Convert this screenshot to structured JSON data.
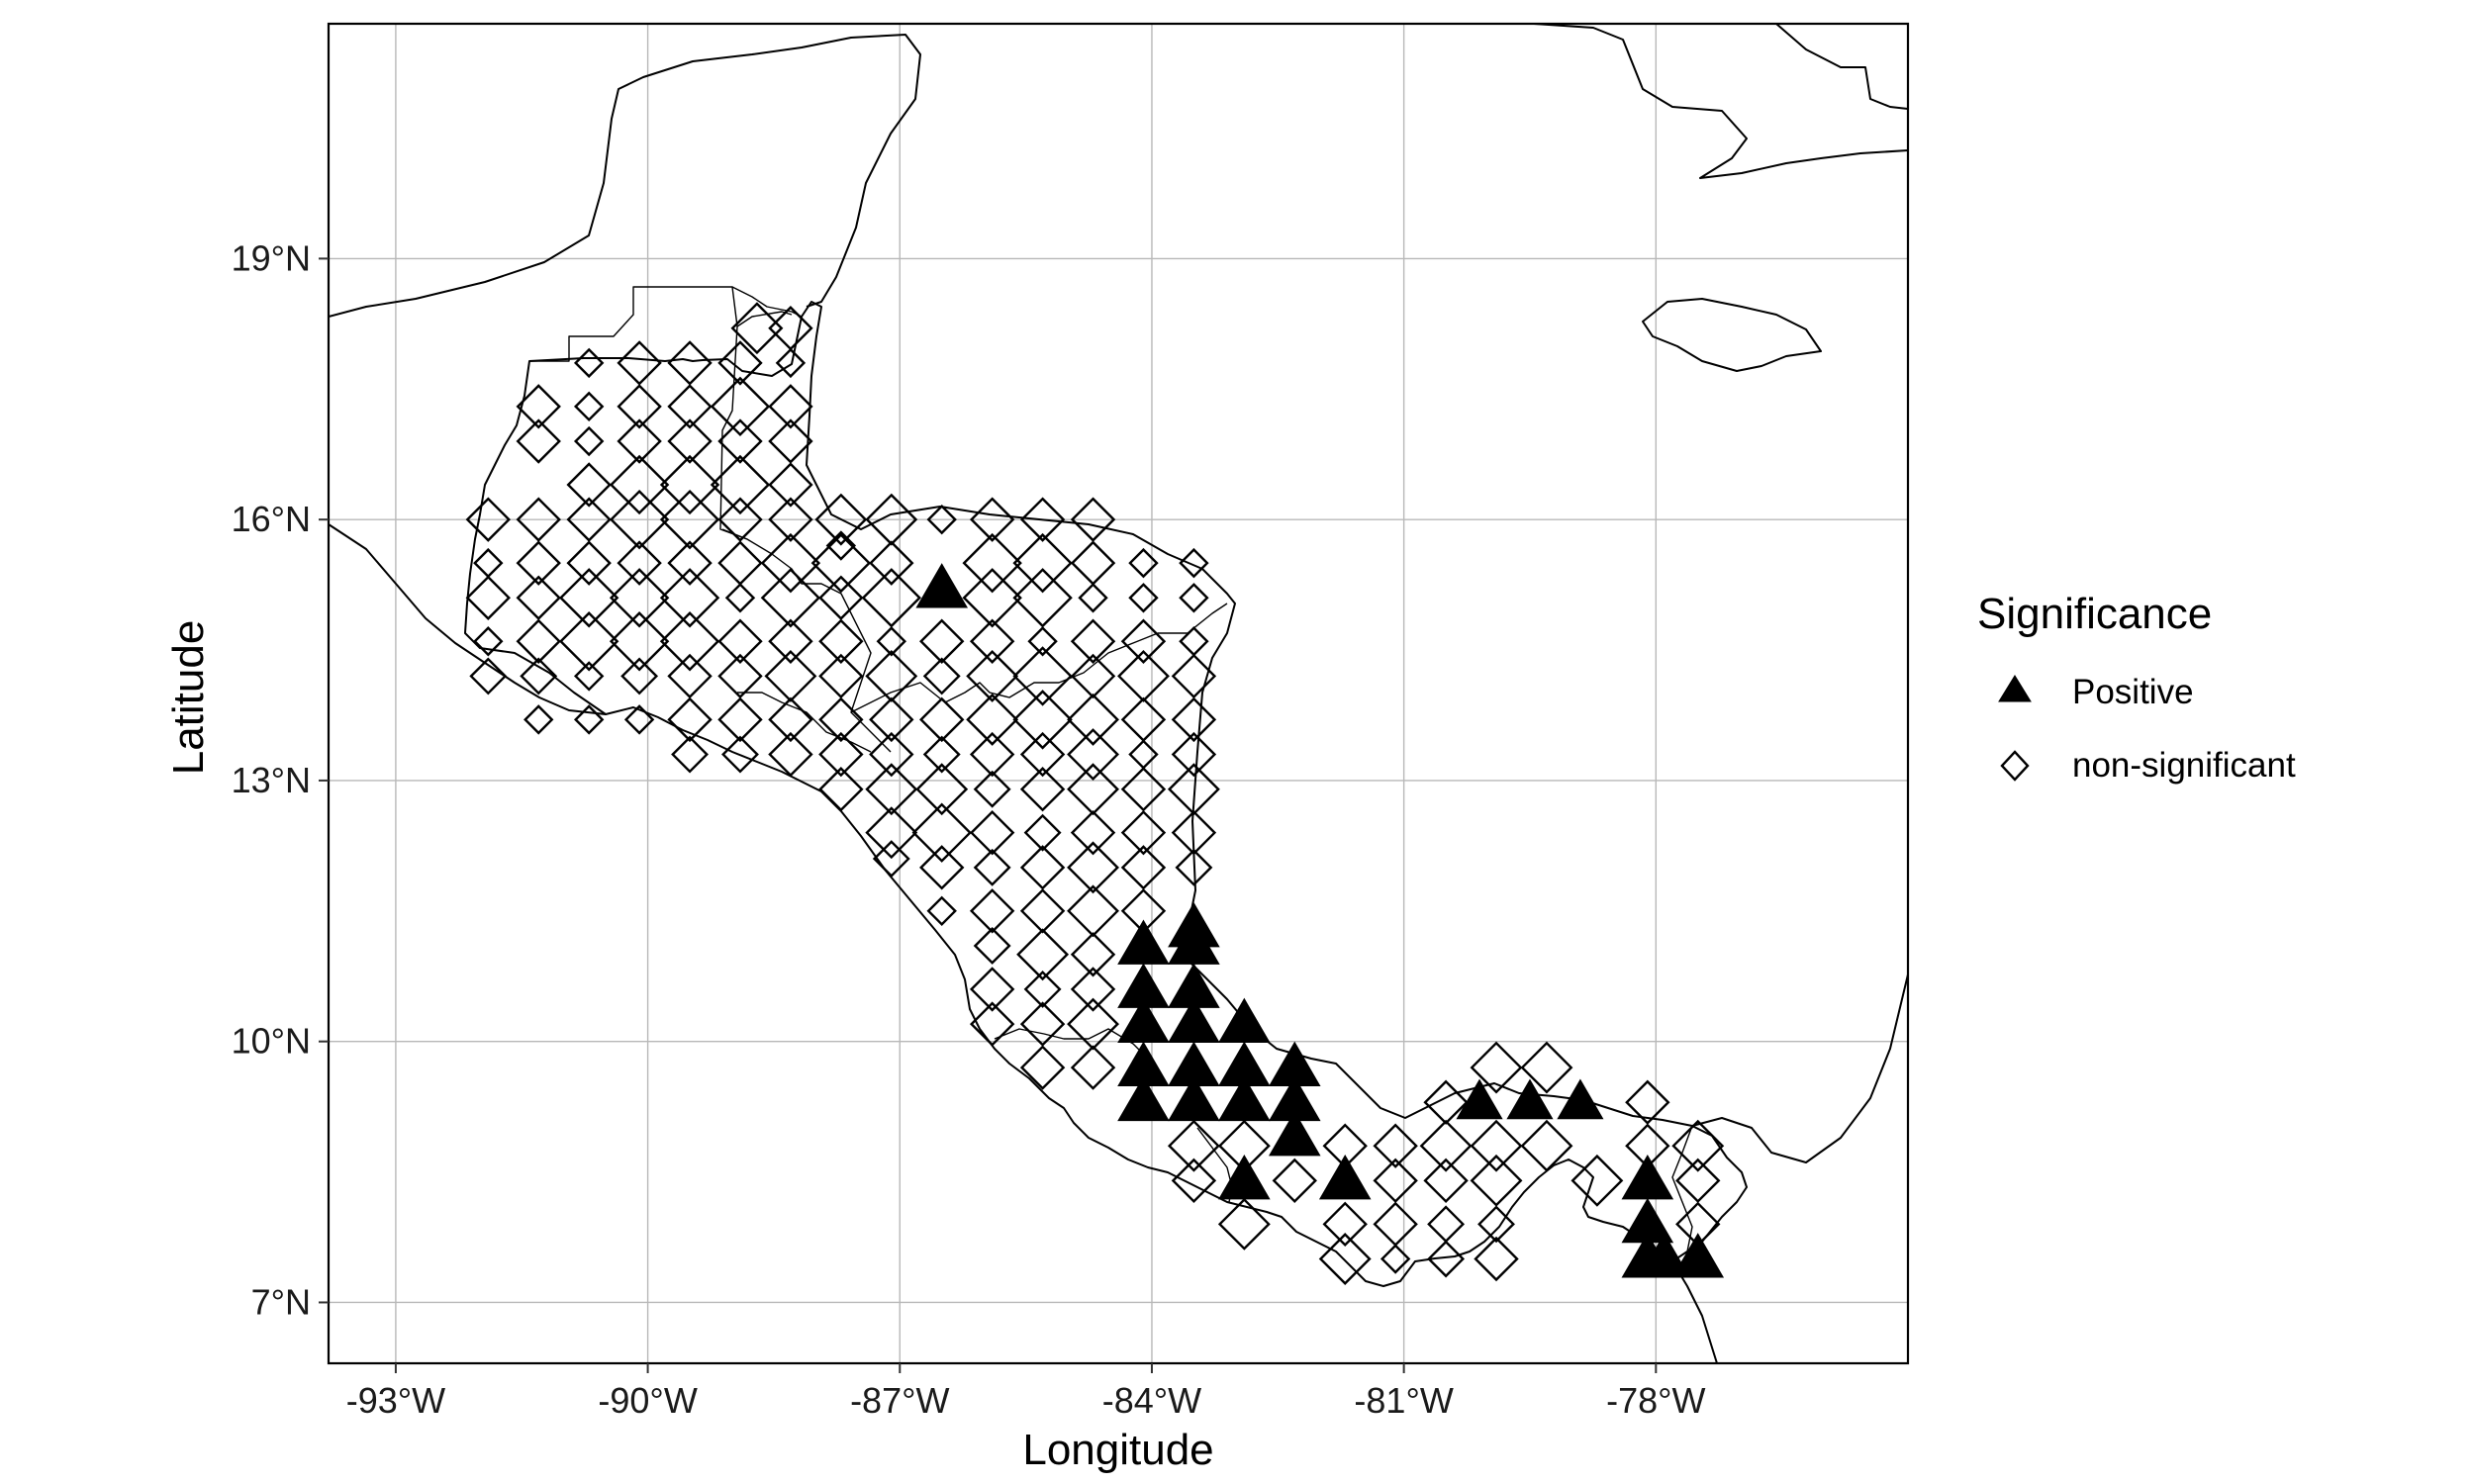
{
  "chart_data": {
    "type": "scatter",
    "xlabel": "Longitude",
    "ylabel": "Latitude",
    "xlim": [
      -93.8,
      -75.0
    ],
    "ylim": [
      6.3,
      21.7
    ],
    "x_ticks": [
      {
        "value": -93,
        "label": "-93°W"
      },
      {
        "value": -90,
        "label": "-90°W"
      },
      {
        "value": -87,
        "label": "-87°W"
      },
      {
        "value": -84,
        "label": "-84°W"
      },
      {
        "value": -81,
        "label": "-81°W"
      },
      {
        "value": -78,
        "label": "-78°W"
      }
    ],
    "y_ticks": [
      {
        "value": 7,
        "label": "7°N"
      },
      {
        "value": 10,
        "label": "10°N"
      },
      {
        "value": 13,
        "label": "13°N"
      },
      {
        "value": 16,
        "label": "16°N"
      },
      {
        "value": 19,
        "label": "19°N"
      }
    ],
    "grid": true,
    "legend": {
      "title": "Significance",
      "position": "right",
      "entries": [
        {
          "label": "Positive",
          "shape": "triangle-filled"
        },
        {
          "label": "non-significant",
          "shape": "diamond-open"
        }
      ]
    },
    "series": [
      {
        "name": "Positive",
        "shape": "triangle-filled",
        "points": [
          [
            -86.5,
            15.2,
            3
          ],
          [
            -84.1,
            11.1,
            3
          ],
          [
            -83.5,
            11.1,
            3
          ],
          [
            -83.5,
            11.3,
            3
          ],
          [
            -84.1,
            10.6,
            3
          ],
          [
            -83.5,
            10.6,
            3
          ],
          [
            -84.1,
            10.2,
            3
          ],
          [
            -83.5,
            10.2,
            3
          ],
          [
            -82.9,
            10.2,
            3
          ],
          [
            -84.1,
            9.7,
            3
          ],
          [
            -83.5,
            9.7,
            3
          ],
          [
            -82.9,
            9.7,
            3
          ],
          [
            -82.3,
            9.7,
            3
          ],
          [
            -84.1,
            9.3,
            3
          ],
          [
            -83.5,
            9.3,
            3
          ],
          [
            -82.9,
            9.3,
            3
          ],
          [
            -82.3,
            9.3,
            3
          ],
          [
            -82.3,
            8.9,
            3
          ],
          [
            -82.9,
            8.4,
            3
          ],
          [
            -81.7,
            8.4,
            3
          ],
          [
            -80.1,
            9.3,
            2.6
          ],
          [
            -79.5,
            9.3,
            2.6
          ],
          [
            -78.9,
            9.3,
            2.6
          ],
          [
            -78.1,
            8.4,
            3
          ],
          [
            -78.1,
            7.9,
            3
          ],
          [
            -78.1,
            7.5,
            3
          ],
          [
            -77.9,
            7.5,
            3
          ],
          [
            -77.5,
            7.5,
            3
          ]
        ]
      },
      {
        "name": "non-significant",
        "shape": "diamond-open",
        "points": [
          [
            -88.7,
            18.2,
            2.5
          ],
          [
            -88.3,
            18.2,
            2
          ],
          [
            -91.3,
            17.3,
            2
          ],
          [
            -90.7,
            17.8,
            1
          ],
          [
            -90.1,
            17.8,
            2
          ],
          [
            -89.5,
            17.8,
            2
          ],
          [
            -88.9,
            17.8,
            2
          ],
          [
            -88.3,
            17.8,
            1
          ],
          [
            -91.3,
            16.9,
            2
          ],
          [
            -90.7,
            17.3,
            1
          ],
          [
            -90.1,
            17.3,
            2
          ],
          [
            -89.5,
            17.3,
            2
          ],
          [
            -88.9,
            17.3,
            3
          ],
          [
            -88.3,
            17.3,
            2
          ],
          [
            -90.7,
            16.9,
            1
          ],
          [
            -90.1,
            16.9,
            2
          ],
          [
            -89.5,
            16.9,
            2
          ],
          [
            -88.9,
            16.9,
            2
          ],
          [
            -88.3,
            16.9,
            2
          ],
          [
            -90.7,
            16.4,
            2
          ],
          [
            -90.1,
            16.4,
            3
          ],
          [
            -89.5,
            16.4,
            3
          ],
          [
            -88.9,
            16.4,
            3
          ],
          [
            -88.3,
            16.4,
            2
          ],
          [
            -91.9,
            16.0,
            2
          ],
          [
            -91.3,
            16.0,
            2
          ],
          [
            -90.7,
            16.0,
            2
          ],
          [
            -90.1,
            16.0,
            3
          ],
          [
            -89.5,
            16.0,
            3
          ],
          [
            -88.9,
            16.0,
            2
          ],
          [
            -88.3,
            16.0,
            2
          ],
          [
            -87.7,
            16.0,
            2.5
          ],
          [
            -87.1,
            16.0,
            2.5
          ],
          [
            -86.5,
            16.0,
            1
          ],
          [
            -85.9,
            16.0,
            2
          ],
          [
            -85.3,
            16.0,
            2
          ],
          [
            -84.7,
            16.0,
            2
          ],
          [
            -91.9,
            15.5,
            1
          ],
          [
            -91.3,
            15.5,
            2
          ],
          [
            -90.7,
            15.5,
            2
          ],
          [
            -90.1,
            15.5,
            2
          ],
          [
            -89.5,
            15.5,
            2
          ],
          [
            -88.9,
            15.5,
            2
          ],
          [
            -88.3,
            15.5,
            3
          ],
          [
            -87.7,
            15.7,
            1
          ],
          [
            -87.7,
            15.5,
            3
          ],
          [
            -87.1,
            15.5,
            2
          ],
          [
            -85.9,
            15.5,
            3
          ],
          [
            -85.3,
            15.5,
            3
          ],
          [
            -84.7,
            15.5,
            2
          ],
          [
            -84.1,
            15.5,
            1
          ],
          [
            -83.5,
            15.5,
            1
          ],
          [
            -91.9,
            15.1,
            2
          ],
          [
            -91.3,
            15.1,
            2
          ],
          [
            -90.7,
            15.1,
            3
          ],
          [
            -90.1,
            15.1,
            3
          ],
          [
            -89.5,
            15.1,
            3
          ],
          [
            -88.9,
            15.1,
            1
          ],
          [
            -88.3,
            15.1,
            3
          ],
          [
            -87.7,
            15.1,
            2
          ],
          [
            -87.1,
            15.1,
            3
          ],
          [
            -85.9,
            15.1,
            3
          ],
          [
            -85.3,
            15.1,
            3
          ],
          [
            -84.7,
            15.1,
            1
          ],
          [
            -84.1,
            15.1,
            1
          ],
          [
            -83.5,
            15.1,
            1
          ],
          [
            -91.9,
            14.6,
            1
          ],
          [
            -91.3,
            14.6,
            2
          ],
          [
            -90.7,
            14.6,
            3
          ],
          [
            -90.1,
            14.6,
            3
          ],
          [
            -89.5,
            14.6,
            3
          ],
          [
            -88.9,
            14.6,
            2
          ],
          [
            -88.3,
            14.6,
            2
          ],
          [
            -87.7,
            14.6,
            2
          ],
          [
            -87.1,
            14.6,
            1
          ],
          [
            -86.5,
            14.6,
            2
          ],
          [
            -85.9,
            14.6,
            2
          ],
          [
            -85.3,
            14.6,
            1
          ],
          [
            -84.7,
            14.6,
            2
          ],
          [
            -84.1,
            14.6,
            2
          ],
          [
            -83.5,
            14.6,
            1
          ],
          [
            -91.9,
            14.2,
            1.5
          ],
          [
            -91.3,
            14.2,
            1.5
          ],
          [
            -90.7,
            14.2,
            1
          ],
          [
            -90.1,
            14.2,
            1.5
          ],
          [
            -89.5,
            14.2,
            2
          ],
          [
            -88.9,
            14.2,
            2
          ],
          [
            -88.3,
            14.2,
            2.5
          ],
          [
            -87.7,
            14.2,
            2
          ],
          [
            -87.1,
            14.2,
            2.5
          ],
          [
            -86.5,
            14.2,
            1.5
          ],
          [
            -85.9,
            14.2,
            2.5
          ],
          [
            -85.3,
            14.2,
            3
          ],
          [
            -84.7,
            14.2,
            2
          ],
          [
            -84.1,
            14.2,
            2.5
          ],
          [
            -83.5,
            14.2,
            2
          ],
          [
            -91.3,
            13.7,
            1
          ],
          [
            -90.7,
            13.7,
            1
          ],
          [
            -90.1,
            13.7,
            1
          ],
          [
            -89.5,
            13.7,
            2
          ],
          [
            -88.9,
            13.7,
            2
          ],
          [
            -88.3,
            13.7,
            2
          ],
          [
            -87.7,
            13.7,
            2
          ],
          [
            -87.1,
            13.7,
            2
          ],
          [
            -86.5,
            13.7,
            2
          ],
          [
            -85.9,
            13.7,
            2.5
          ],
          [
            -85.3,
            13.7,
            3
          ],
          [
            -84.7,
            13.7,
            2.5
          ],
          [
            -84.1,
            13.7,
            2
          ],
          [
            -83.5,
            13.7,
            2
          ],
          [
            -89.5,
            13.3,
            1.5
          ],
          [
            -88.9,
            13.3,
            1.5
          ],
          [
            -88.3,
            13.3,
            2
          ],
          [
            -87.7,
            13.3,
            2
          ],
          [
            -87.1,
            13.3,
            2
          ],
          [
            -86.5,
            13.3,
            1.5
          ],
          [
            -85.9,
            13.3,
            2
          ],
          [
            -85.3,
            13.3,
            2
          ],
          [
            -84.7,
            13.3,
            2.5
          ],
          [
            -84.1,
            13.3,
            1
          ],
          [
            -83.5,
            13.3,
            2
          ],
          [
            -87.7,
            12.9,
            2
          ],
          [
            -87.1,
            12.9,
            2.5
          ],
          [
            -86.5,
            12.9,
            2.5
          ],
          [
            -85.9,
            12.9,
            1.5
          ],
          [
            -85.3,
            12.9,
            2
          ],
          [
            -84.7,
            12.9,
            2.5
          ],
          [
            -84.1,
            12.9,
            2
          ],
          [
            -83.5,
            12.9,
            2.5
          ],
          [
            -87.1,
            12.4,
            2.5
          ],
          [
            -86.5,
            12.4,
            3
          ],
          [
            -85.9,
            12.4,
            2
          ],
          [
            -85.3,
            12.4,
            1.5
          ],
          [
            -84.7,
            12.4,
            2
          ],
          [
            -84.1,
            12.4,
            2
          ],
          [
            -83.5,
            12.4,
            2
          ],
          [
            -87.1,
            12.1,
            1.5
          ],
          [
            -86.5,
            12.0,
            2
          ],
          [
            -85.9,
            12.0,
            1.5
          ],
          [
            -85.3,
            12.0,
            2
          ],
          [
            -84.7,
            12.0,
            2.5
          ],
          [
            -84.1,
            12.0,
            2
          ],
          [
            -83.5,
            12.0,
            1.5
          ],
          [
            -86.5,
            11.5,
            1
          ],
          [
            -85.9,
            11.5,
            2
          ],
          [
            -85.3,
            11.5,
            2
          ],
          [
            -84.7,
            11.5,
            2.5
          ],
          [
            -84.1,
            11.5,
            2
          ],
          [
            -85.9,
            11.1,
            1.5
          ],
          [
            -85.3,
            11.0,
            2.5
          ],
          [
            -84.7,
            11.0,
            2
          ],
          [
            -85.9,
            10.6,
            2
          ],
          [
            -85.3,
            10.6,
            1.5
          ],
          [
            -84.7,
            10.6,
            2
          ],
          [
            -85.9,
            10.2,
            2
          ],
          [
            -85.3,
            10.2,
            2
          ],
          [
            -84.7,
            10.2,
            2.5
          ],
          [
            -85.3,
            9.7,
            2
          ],
          [
            -84.7,
            9.7,
            2
          ],
          [
            -83.5,
            8.8,
            2.5
          ],
          [
            -82.9,
            8.8,
            2.5
          ],
          [
            -81.7,
            8.8,
            2
          ],
          [
            -81.1,
            8.8,
            2
          ],
          [
            -83.5,
            8.4,
            2
          ],
          [
            -82.3,
            8.4,
            2
          ],
          [
            -81.1,
            8.4,
            2
          ],
          [
            -82.9,
            7.9,
            2.5
          ],
          [
            -81.7,
            7.9,
            2
          ],
          [
            -81.1,
            7.9,
            2
          ],
          [
            -81.7,
            7.5,
            2.5
          ],
          [
            -81.1,
            7.5,
            1
          ],
          [
            -80.5,
            9.3,
            2
          ],
          [
            -79.9,
            9.7,
            2.5
          ],
          [
            -79.3,
            9.7,
            2.5
          ],
          [
            -80.5,
            8.8,
            2.5
          ],
          [
            -79.9,
            8.8,
            2.5
          ],
          [
            -79.3,
            8.8,
            2.5
          ],
          [
            -78.1,
            9.3,
            2
          ],
          [
            -80.5,
            8.4,
            2
          ],
          [
            -79.9,
            8.4,
            2.5
          ],
          [
            -78.7,
            8.4,
            2.5
          ],
          [
            -78.1,
            8.8,
            2
          ],
          [
            -77.5,
            8.8,
            2.5
          ],
          [
            -80.5,
            7.9,
            1.5
          ],
          [
            -79.9,
            7.9,
            1.5
          ],
          [
            -77.5,
            8.4,
            2
          ],
          [
            -77.5,
            7.9,
            2
          ],
          [
            -80.5,
            7.5,
            1.5
          ],
          [
            -79.9,
            7.5,
            2
          ]
        ]
      }
    ]
  },
  "colors": {
    "marker": "#000000",
    "grid": "#b8b8b8",
    "background": "#ffffff"
  }
}
